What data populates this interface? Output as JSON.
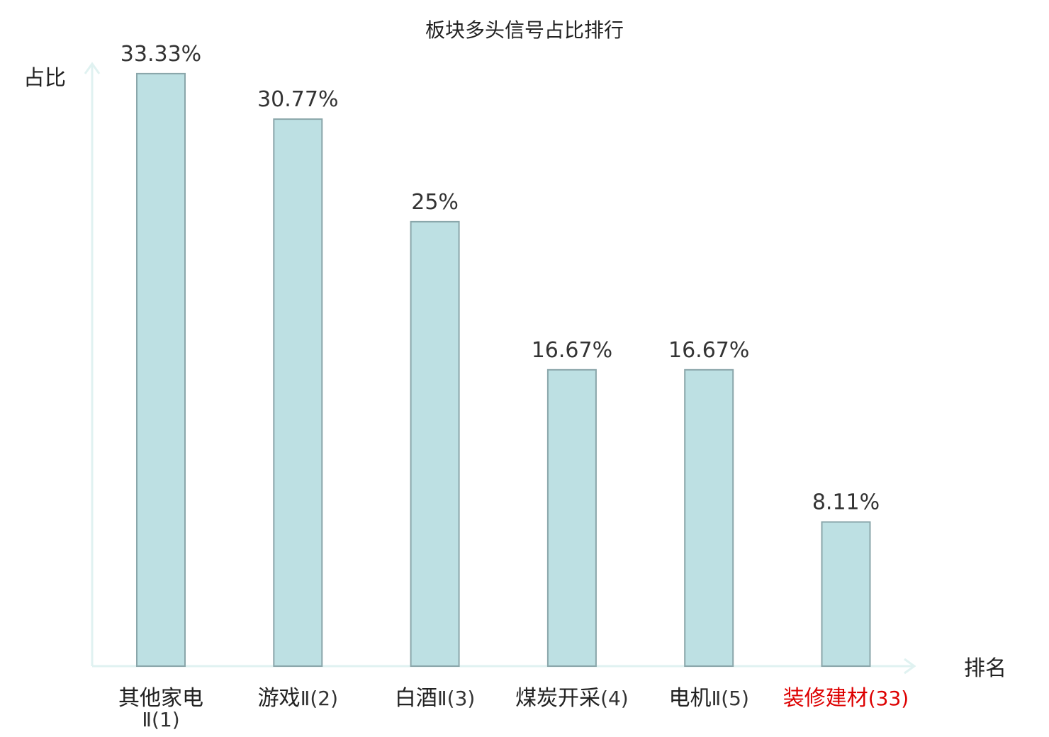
{
  "chart_data": {
    "type": "bar",
    "title": "板块多头信号占比排行",
    "ylabel": "占比",
    "xlabel": "排名",
    "categories": [
      {
        "name": "其他家电Ⅱ",
        "rank": "(1)",
        "highlight": false
      },
      {
        "name": "游戏Ⅱ",
        "rank": "(2)",
        "highlight": false
      },
      {
        "name": "白酒Ⅱ",
        "rank": "(3)",
        "highlight": false
      },
      {
        "name": "煤炭开采",
        "rank": "(4)",
        "highlight": false
      },
      {
        "name": "电机Ⅱ",
        "rank": "(5)",
        "highlight": false
      },
      {
        "name": "装修建材",
        "rank": "(33)",
        "highlight": true
      }
    ],
    "values": [
      33.33,
      30.77,
      25,
      16.67,
      16.67,
      8.11
    ],
    "value_labels": [
      "33.33%",
      "30.77%",
      "25%",
      "16.67%",
      "16.67%",
      "8.11%"
    ],
    "ylim": [
      0,
      35
    ],
    "grid": false,
    "colors": {
      "bar_fill": "#bde0e3",
      "bar_stroke": "#8aa6aa",
      "axis": "#e0f2f1",
      "label_normal": "#222222",
      "label_highlight": "#dd0000",
      "label_suffix_normal": "#333333"
    }
  }
}
